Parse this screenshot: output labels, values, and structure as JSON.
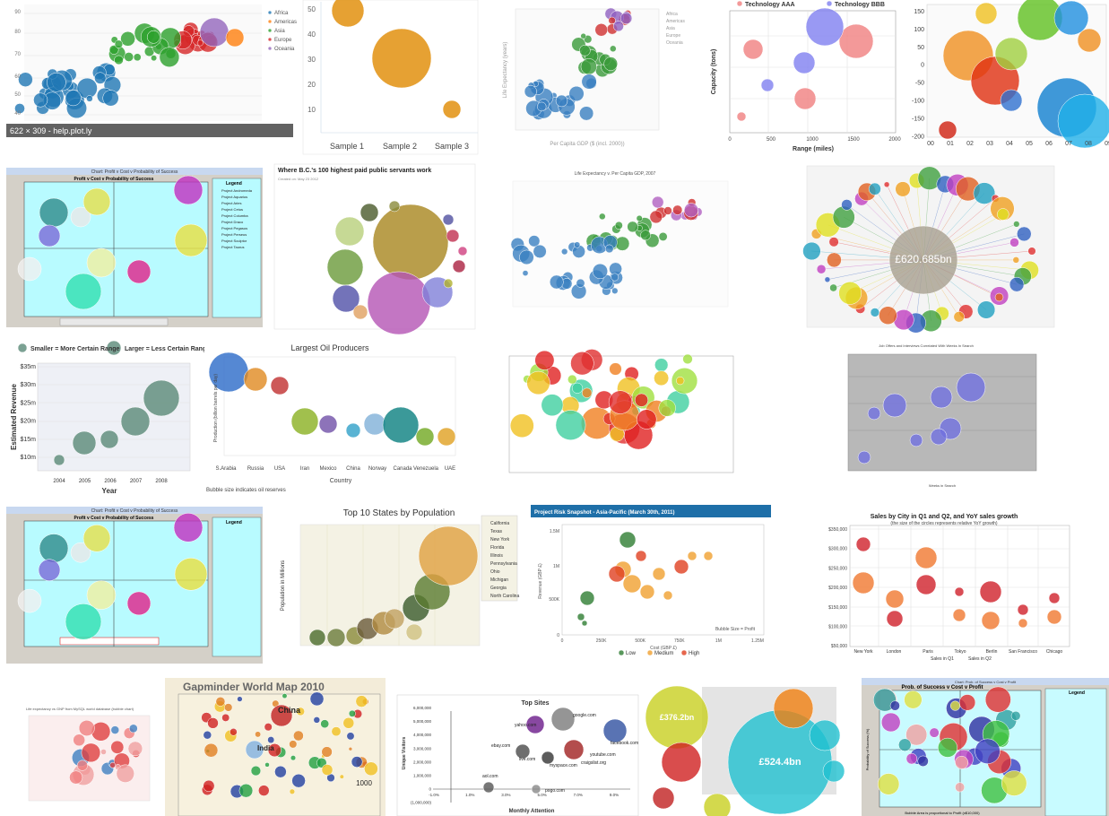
{
  "results": [
    {
      "texts": [
        "622 × 309 - help.plot.ly",
        "Africa",
        "Americas",
        "Asia",
        "Europe",
        "Oceania",
        "90",
        "80",
        "70",
        "60",
        "50",
        "40"
      ]
    },
    {
      "texts": [
        "50",
        "40",
        "30",
        "20",
        "10",
        "Sample 1",
        "Sample 2",
        "Sample 3"
      ]
    },
    {
      "texts": [
        "Africa",
        "Americas",
        "Asia",
        "Europe",
        "Oceania",
        "Per Capita GDP ($ (incl. 2000))",
        "Life Expectancy (years)"
      ]
    },
    {
      "texts": [
        "Technology AAA",
        "Technology BBB",
        "0",
        "500",
        "1000",
        "1500",
        "2000",
        "Range (miles)",
        "Capacity (tons)"
      ]
    },
    {
      "texts": [
        "150",
        "100",
        "50",
        "0",
        "-50",
        "-100",
        "-150",
        "-200",
        "00",
        "01",
        "02",
        "03",
        "04",
        "05",
        "06",
        "07",
        "08",
        "09"
      ]
    },
    {
      "texts": [
        "Chart: Profit v Cost v Probability of Success",
        "Profit v Cost v Probability of Success",
        "Legend",
        "Project Andromeda",
        "Project Aquarius",
        "Project Aries",
        "Project Cetus",
        "Project Columba",
        "Project Draco",
        "Project Pegasus",
        "Project Perseus",
        "Project Sculptor",
        "Project Taurus"
      ]
    },
    {
      "texts": [
        "Where B.C.'s 100 highest paid public servants work",
        "Created on: May 23 2012"
      ]
    },
    {
      "texts": [
        "Life Expectancy v. Per Capita GDP, 2007"
      ]
    },
    {
      "texts": [
        "£620.685bn"
      ]
    },
    {
      "texts": [
        "Smaller = More Certain Range",
        "Larger = Less Certain Range",
        "$35m",
        "$30m",
        "$25m",
        "$20m",
        "$15m",
        "$10m",
        "2004",
        "2005",
        "2006",
        "2007",
        "2008",
        "Estimated Revenue",
        "Year"
      ]
    },
    {
      "texts": [
        "Largest Oil Producers",
        "S.Arabia",
        "Russia",
        "USA",
        "Iran",
        "Mexico",
        "China",
        "Norway",
        "Canada",
        "Venezuela",
        "UAE",
        "Country",
        "Production (billion barrels per day)",
        "Bubble size indicates oil reserves"
      ]
    },
    {},
    {
      "texts": [
        "Job Offers and Interviews Correlated With Weeks In Search",
        "Weeks in Search"
      ]
    },
    {
      "texts": [
        "Chart: Profit v Cost v Probability of Success",
        "Profit v Cost v Probability of Success",
        "Legend"
      ]
    },
    {
      "texts": [
        "Top 10 States by Population",
        "California",
        "Texas",
        "New York",
        "Florida",
        "Illinois",
        "Pennsylvania",
        "Ohio",
        "Michigan",
        "Georgia",
        "North Carolina",
        "Population in Millions"
      ]
    },
    {
      "texts": [
        "Project Risk Snapshot - Asia-Pacific (March 30th, 2011)",
        "1.5M",
        "1M",
        "500K",
        "0",
        "0",
        "250K",
        "500K",
        "750K",
        "1M",
        "1.25M",
        "Revenue (GBP £)",
        "Cost (GBP £)",
        "Bubble Size = Profit",
        "Low",
        "Medium",
        "High"
      ]
    },
    {
      "texts": [
        "Sales by City in Q1 and Q2, and YoY sales growth",
        "(the size of the circles represents relative YoY growth)",
        "$350,000",
        "$300,000",
        "$250,000",
        "$200,000",
        "$150,000",
        "$100,000",
        "$50,000",
        "New York",
        "London",
        "Paris",
        "Tokyo",
        "Berlin",
        "San Francisco",
        "Chicago",
        "Sales in Q1",
        "Sales in Q2"
      ]
    },
    {
      "texts": [
        "Life expectancy vs GNP from MySQL world database (bubble chart)"
      ]
    },
    {
      "texts": [
        "Gapminder World Map 2010",
        "China",
        "India",
        "1000"
      ]
    },
    {
      "texts": [
        "Top Sites",
        "6,000,000",
        "5,000,000",
        "4,000,000",
        "3,000,000",
        "2,000,000",
        "1,000,000",
        "0",
        "(1,000,000)",
        "-1.0%",
        "1.0%",
        "3.0%",
        "5.0%",
        "7.0%",
        "9.0%",
        "Unique Visitors",
        "Monthly Attention",
        "yahoo.com",
        "google.com",
        "facebook.com",
        "ebay.com",
        "live.com",
        "youtube.com",
        "myspace.com",
        "craigslist.org",
        "aol.com",
        "pogo.com"
      ]
    },
    {
      "texts": [
        "£376.2bn",
        "£524.4bn"
      ]
    },
    {
      "texts": [
        "Chart: Prob. of Success v Cost v Profit",
        "Prob. of Success v Cost v Profit",
        "Legend",
        "Probability of Success (%)",
        "Bubble Area is proportional to Profit (x$10,000)"
      ]
    }
  ]
}
